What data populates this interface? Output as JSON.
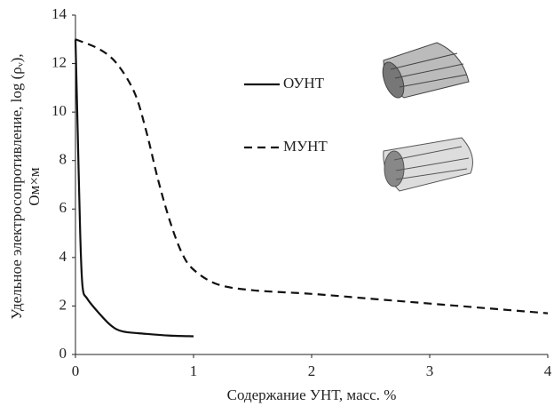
{
  "chart_data": {
    "type": "line",
    "y_label": [
      "Удельное электросопротивление, log (ρᵥ),",
      "Ом×м"
    ],
    "x_label": "Содержание УНТ, масс. %",
    "xlim": [
      0,
      4
    ],
    "xticks": [
      0,
      1,
      2,
      3,
      4
    ],
    "ylim": [
      0,
      14
    ],
    "yticks": [
      0,
      2,
      4,
      6,
      8,
      10,
      12,
      14
    ],
    "grid": false,
    "series": [
      {
        "name": "ОУНТ",
        "color": "#111111",
        "dash": false,
        "x": [
          0,
          0.02,
          0.04,
          0.06,
          0.1,
          0.2,
          0.3,
          0.4,
          0.6,
          0.8,
          1
        ],
        "values": [
          13,
          9,
          5,
          2.8,
          2.3,
          1.7,
          1.2,
          0.95,
          0.85,
          0.78,
          0.75
        ]
      },
      {
        "name": "МУНТ",
        "color": "#111111",
        "dash": true,
        "x": [
          0,
          0.2,
          0.35,
          0.5,
          0.6,
          0.7,
          0.8,
          0.9,
          1,
          1.2,
          1.5,
          2,
          2.5,
          3,
          3.5,
          4
        ],
        "values": [
          13,
          12.6,
          12,
          10.8,
          9.2,
          7.2,
          5.5,
          4.2,
          3.5,
          2.9,
          2.65,
          2.5,
          2.3,
          2.1,
          1.9,
          1.7
        ]
      }
    ]
  }
}
